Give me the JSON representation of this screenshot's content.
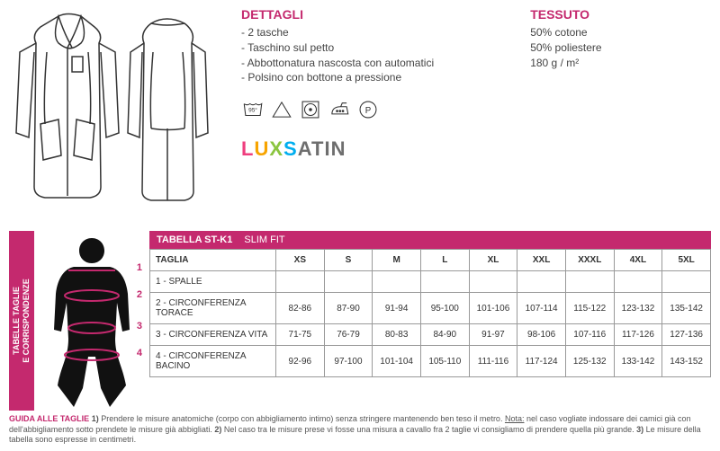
{
  "colors": {
    "accent": "#c4296e",
    "text": "#333333",
    "border": "#999999"
  },
  "details": {
    "heading": "DETTAGLI",
    "items": [
      "- 2 tasche",
      "- Taschino sul petto",
      "- Abbottonatura nascosta con automatici",
      "- Polsino con bottone a pressione"
    ]
  },
  "fabric": {
    "heading": "TESSUTO",
    "lines": [
      "50% cotone",
      "50% poliestere",
      "180 g / m²"
    ]
  },
  "care": {
    "wash_temp": "95°",
    "dryclean_letter": "P"
  },
  "brand": {
    "text": "LUXSATIN"
  },
  "sidebar": {
    "line1": "TABELLE TAGLIE",
    "line2": "E CORRISPONDENZE"
  },
  "silhouette_numbers": [
    "1",
    "2",
    "3",
    "4"
  ],
  "table": {
    "title": "TABELLA ST-K1",
    "subtitle": "SLIM FIT",
    "row_header": "TAGLIA",
    "sizes": [
      "XS",
      "S",
      "M",
      "L",
      "XL",
      "XXL",
      "XXXL",
      "4XL",
      "5XL"
    ],
    "rows": [
      {
        "label": "1 - SPALLE",
        "values": [
          "",
          "",
          "",
          "",
          "",
          "",
          "",
          "",
          ""
        ]
      },
      {
        "label": "2 - CIRCONFERENZA TORACE",
        "values": [
          "82-86",
          "87-90",
          "91-94",
          "95-100",
          "101-106",
          "107-114",
          "115-122",
          "123-132",
          "135-142"
        ]
      },
      {
        "label": "3 - CIRCONFERENZA VITA",
        "values": [
          "71-75",
          "76-79",
          "80-83",
          "84-90",
          "91-97",
          "98-106",
          "107-116",
          "117-126",
          "127-136"
        ]
      },
      {
        "label": "4 - CIRCONFERENZA BACINO",
        "values": [
          "92-96",
          "97-100",
          "101-104",
          "105-110",
          "111-116",
          "117-124",
          "125-132",
          "133-142",
          "143-152"
        ]
      }
    ]
  },
  "guide": {
    "title": "GUIDA ALLE TAGLIE",
    "p1a": "1)",
    "p1": " Prendere le misure anatomiche (corpo con abbigliamento intimo) senza stringere mantenendo ben teso il metro. ",
    "p1note_label": "Nota:",
    "p1note": " nel caso vogliate indossare dei camici già con dell'abbigliamento sotto prendete le misure già abbigliati. ",
    "p2a": "2)",
    "p2": " Nel caso tra le misure prese vi fosse una misura a cavallo fra 2 taglie vi consigliamo di prendere quella più grande. ",
    "p3a": "3)",
    "p3": " Le misure della tabella sono espresse in centimetri."
  }
}
